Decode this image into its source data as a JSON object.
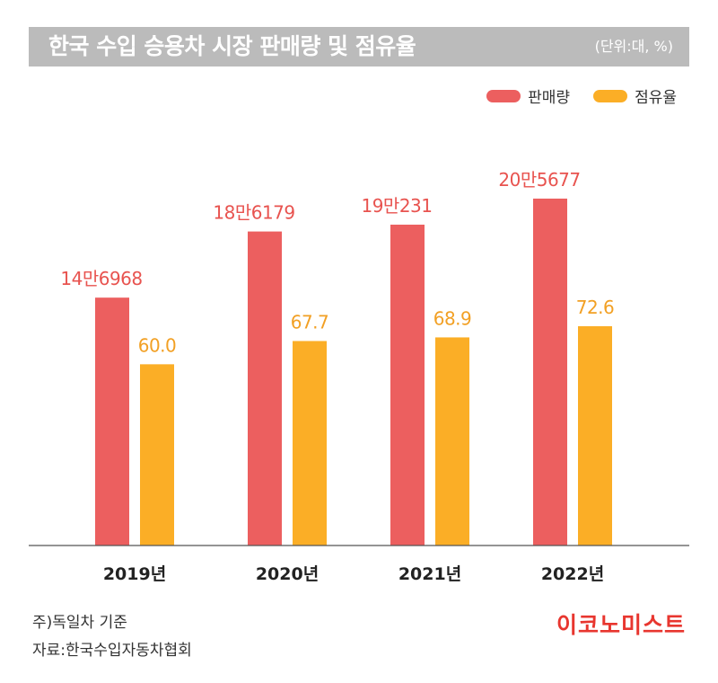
{
  "header": {
    "title": "한국 수입 승용차 시장 판매량 및 점유율",
    "unit": "(단위:대, %)"
  },
  "colors": {
    "sales": "#ec5f5f",
    "share": "#fbae26",
    "sales_label": "#e8534f",
    "share_label": "#f2a024",
    "axis": "#555555",
    "header_bg": "#bbbbbb"
  },
  "chart_data": {
    "type": "bar",
    "categories": [
      "2019년",
      "2020년",
      "2021년",
      "2022년"
    ],
    "series": [
      {
        "name": "판매량",
        "values": [
          146968,
          186179,
          190231,
          205677
        ],
        "labels": [
          "14만6968",
          "18만6179",
          "19만231",
          "20만5677"
        ]
      },
      {
        "name": "점유율",
        "values": [
          60.0,
          67.7,
          68.9,
          72.6
        ],
        "labels": [
          "60.0",
          "67.7",
          "68.9",
          "72.6"
        ]
      }
    ],
    "legend": "top-right",
    "grid": false
  },
  "footer": {
    "note": "주)독일차 기준",
    "source": "자료:한국수입자동차협회",
    "brand": "이코노미스트"
  }
}
